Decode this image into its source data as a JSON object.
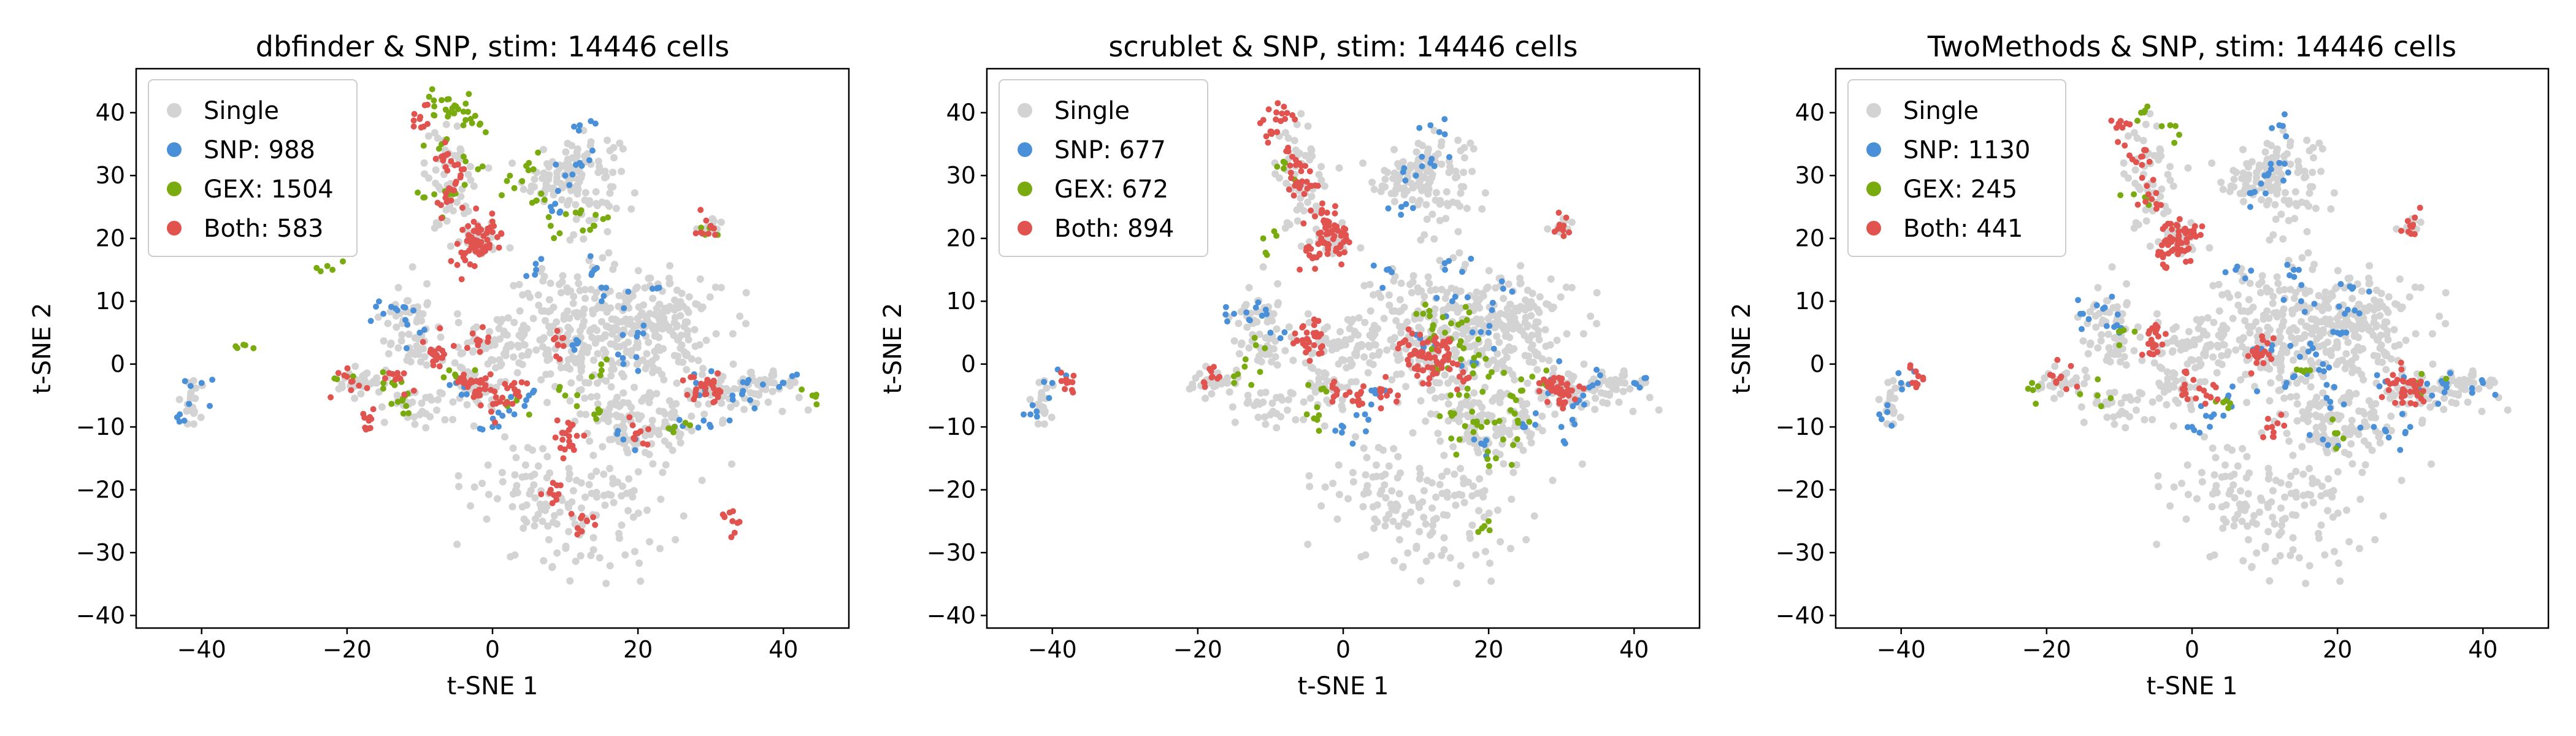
{
  "figure": {
    "description_colors": {
      "Single": "#d3d3d3",
      "SNP": "#4a90d9",
      "GEX": "#7aab0e",
      "Both": "#e0534f"
    }
  },
  "chart_data": [
    {
      "type": "scatter",
      "title": "dbfinder & SNP, stim: 14446 cells",
      "xlabel": "t-SNE 1",
      "ylabel": "t-SNE 2",
      "xlim": [
        -49,
        49
      ],
      "ylim": [
        -42,
        47
      ],
      "xticks": [
        -40,
        -20,
        0,
        20,
        40
      ],
      "yticks": [
        -40,
        -30,
        -20,
        -10,
        0,
        10,
        20,
        30,
        40
      ],
      "grid": false,
      "legend_position": "top-left",
      "legend": [
        {
          "label": "Single",
          "color": "#d3d3d3"
        },
        {
          "label": "SNP: 988",
          "color": "#4a90d9"
        },
        {
          "label": "GEX: 1504",
          "color": "#7aab0e"
        },
        {
          "label": "Both: 583",
          "color": "#e0534f"
        }
      ],
      "series": [
        {
          "category": "SNP",
          "color": "#4a90d9",
          "points": [
            [
              10,
              30
            ],
            [
              12,
              32
            ],
            [
              8,
              25
            ],
            [
              15,
              10
            ],
            [
              20,
              5
            ],
            [
              18,
              0
            ],
            [
              5,
              -5
            ],
            [
              -10,
              5
            ],
            [
              -15,
              8
            ],
            [
              25,
              -10
            ],
            [
              28,
              -3
            ],
            [
              35,
              -3
            ],
            [
              40,
              -3
            ],
            [
              -43,
              -8
            ],
            [
              -40,
              -3
            ],
            [
              22,
              12
            ],
            [
              14,
              15
            ],
            [
              -5,
              -3
            ],
            [
              0,
              -10
            ],
            [
              30,
              -10
            ],
            [
              33,
              -5
            ],
            [
              18,
              -12
            ],
            [
              11,
              3
            ],
            [
              12,
              38
            ],
            [
              6,
              15
            ],
            [
              3,
              -8
            ],
            [
              -12,
              9
            ]
          ]
        },
        {
          "category": "GEX",
          "color": "#7aab0e",
          "points": [
            [
              -7,
              42
            ],
            [
              -5,
              41
            ],
            [
              -3,
              39
            ],
            [
              -4,
              38
            ],
            [
              -6,
              40
            ],
            [
              -8,
              41
            ],
            [
              -7,
              35
            ],
            [
              -2,
              31
            ],
            [
              3,
              28
            ],
            [
              6,
              26
            ],
            [
              8,
              22
            ],
            [
              12,
              24
            ],
            [
              14,
              22
            ],
            [
              5,
              32
            ],
            [
              -8,
              27
            ],
            [
              -6,
              27
            ],
            [
              -12,
              -5
            ],
            [
              -13,
              -6
            ],
            [
              -20,
              -2
            ],
            [
              -5,
              -2
            ],
            [
              2,
              -6
            ],
            [
              10,
              -5
            ],
            [
              14,
              -8
            ],
            [
              25,
              -10
            ],
            [
              15,
              -1
            ],
            [
              -22,
              15
            ],
            [
              -34,
              3
            ],
            [
              30,
              22
            ],
            [
              -15,
              -3
            ],
            [
              44,
              -5
            ]
          ]
        },
        {
          "category": "Both",
          "color": "#e0534f",
          "points": [
            [
              -2,
              22
            ],
            [
              -3,
              20
            ],
            [
              -1,
              18
            ],
            [
              -2,
              19
            ],
            [
              0,
              21
            ],
            [
              -4,
              17
            ],
            [
              -10,
              39
            ],
            [
              -7,
              33
            ],
            [
              -5,
              29
            ],
            [
              -6,
              26
            ],
            [
              -8,
              2
            ],
            [
              -7,
              1
            ],
            [
              -2,
              3
            ],
            [
              -4,
              -3
            ],
            [
              -2,
              -5
            ],
            [
              -1,
              -4
            ],
            [
              1,
              -6
            ],
            [
              3,
              -3
            ],
            [
              9,
              3
            ],
            [
              10,
              -11
            ],
            [
              11,
              -13
            ],
            [
              28,
              -4
            ],
            [
              30,
              -3
            ],
            [
              31,
              -5
            ],
            [
              30,
              22
            ],
            [
              -13,
              -2
            ],
            [
              -20,
              -2
            ],
            [
              -17,
              -9
            ],
            [
              20,
              -11
            ],
            [
              8,
              -20
            ],
            [
              13,
              -25
            ],
            [
              33,
              -25
            ]
          ]
        }
      ]
    },
    {
      "type": "scatter",
      "title": "scrublet & SNP, stim: 14446 cells",
      "xlabel": "t-SNE 1",
      "ylabel": "t-SNE 2",
      "xlim": [
        -49,
        49
      ],
      "ylim": [
        -42,
        47
      ],
      "xticks": [
        -40,
        -20,
        0,
        20,
        40
      ],
      "yticks": [
        -40,
        -30,
        -20,
        -10,
        0,
        10,
        20,
        30,
        40
      ],
      "grid": false,
      "legend_position": "top-left",
      "legend": [
        {
          "label": "Single",
          "color": "#d3d3d3"
        },
        {
          "label": "SNP: 677",
          "color": "#4a90d9"
        },
        {
          "label": "GEX: 672",
          "color": "#7aab0e"
        },
        {
          "label": "Both: 894",
          "color": "#e0534f"
        }
      ],
      "series": [
        {
          "category": "SNP",
          "color": "#4a90d9",
          "points": [
            [
              10,
              30
            ],
            [
              12,
              32
            ],
            [
              8,
              25
            ],
            [
              15,
              10
            ],
            [
              20,
              5
            ],
            [
              18,
              0
            ],
            [
              5,
              -5
            ],
            [
              -10,
              5
            ],
            [
              -15,
              8
            ],
            [
              25,
              -10
            ],
            [
              28,
              -3
            ],
            [
              35,
              -3
            ],
            [
              40,
              -3
            ],
            [
              -43,
              -8
            ],
            [
              -40,
              -3
            ],
            [
              22,
              12
            ],
            [
              14,
              15
            ],
            [
              0,
              -10
            ],
            [
              30,
              -10
            ],
            [
              33,
              -5
            ],
            [
              18,
              -12
            ],
            [
              11,
              3
            ],
            [
              12,
              38
            ],
            [
              6,
              15
            ],
            [
              3,
              -8
            ],
            [
              -12,
              9
            ]
          ]
        },
        {
          "category": "GEX",
          "color": "#7aab0e",
          "points": [
            [
              14,
              5
            ],
            [
              16,
              3
            ],
            [
              18,
              1
            ],
            [
              20,
              -2
            ],
            [
              17,
              -5
            ],
            [
              15,
              -8
            ],
            [
              19,
              -10
            ],
            [
              22,
              -12
            ],
            [
              21,
              -15
            ],
            [
              13,
              -1
            ],
            [
              12,
              4
            ],
            [
              17,
              7
            ],
            [
              23,
              -5
            ],
            [
              11,
              8
            ],
            [
              16,
              -12
            ],
            [
              -12,
              3
            ],
            [
              -15,
              -3
            ],
            [
              -8,
              32
            ],
            [
              -11,
              20
            ],
            [
              20,
              -25
            ],
            [
              -5,
              -8
            ],
            [
              24,
              -9
            ],
            [
              26,
              -2
            ],
            [
              -3,
              -4
            ]
          ]
        },
        {
          "category": "Both",
          "color": "#e0534f",
          "points": [
            [
              -2,
              22
            ],
            [
              -3,
              20
            ],
            [
              -1,
              18
            ],
            [
              -4,
              17
            ],
            [
              -2,
              19
            ],
            [
              0,
              21
            ],
            [
              -3,
              24
            ],
            [
              -7,
              33
            ],
            [
              -10,
              37
            ],
            [
              -8,
              39
            ],
            [
              -6,
              28
            ],
            [
              -5,
              29
            ],
            [
              -5,
              5
            ],
            [
              -4,
              3
            ],
            [
              -5,
              4
            ],
            [
              9,
              3
            ],
            [
              10,
              2
            ],
            [
              12,
              1
            ],
            [
              11,
              -1
            ],
            [
              14,
              3
            ],
            [
              6,
              -5
            ],
            [
              2,
              -5
            ],
            [
              -1,
              -4
            ],
            [
              28,
              -3
            ],
            [
              30,
              -3
            ],
            [
              31,
              -5
            ],
            [
              29,
              -4
            ],
            [
              30,
              22
            ],
            [
              -18,
              -2
            ],
            [
              -38,
              -3
            ],
            [
              16,
              -2
            ],
            [
              13,
              0
            ]
          ]
        }
      ]
    },
    {
      "type": "scatter",
      "title": "TwoMethods & SNP, stim: 14446 cells",
      "xlabel": "t-SNE 1",
      "ylabel": "t-SNE 2",
      "xlim": [
        -49,
        49
      ],
      "ylim": [
        -42,
        47
      ],
      "xticks": [
        -40,
        -20,
        0,
        20,
        40
      ],
      "yticks": [
        -40,
        -30,
        -20,
        -10,
        0,
        10,
        20,
        30,
        40
      ],
      "grid": false,
      "legend_position": "top-left",
      "legend": [
        {
          "label": "Single",
          "color": "#d3d3d3"
        },
        {
          "label": "SNP: 1130",
          "color": "#4a90d9"
        },
        {
          "label": "GEX: 245",
          "color": "#7aab0e"
        },
        {
          "label": "Both: 441",
          "color": "#e0534f"
        }
      ],
      "series": [
        {
          "category": "SNP",
          "color": "#4a90d9",
          "points": [
            [
              10,
              30
            ],
            [
              12,
              32
            ],
            [
              8,
              25
            ],
            [
              15,
              10
            ],
            [
              20,
              5
            ],
            [
              18,
              0
            ],
            [
              5,
              -5
            ],
            [
              -10,
              5
            ],
            [
              -15,
              8
            ],
            [
              25,
              -10
            ],
            [
              28,
              -3
            ],
            [
              35,
              -3
            ],
            [
              40,
              -3
            ],
            [
              -43,
              -8
            ],
            [
              -40,
              -3
            ],
            [
              22,
              12
            ],
            [
              14,
              15
            ],
            [
              0,
              -10
            ],
            [
              30,
              -10
            ],
            [
              33,
              -5
            ],
            [
              18,
              -12
            ],
            [
              11,
              3
            ],
            [
              12,
              38
            ],
            [
              6,
              15
            ],
            [
              3,
              -8
            ],
            [
              -12,
              9
            ],
            [
              16,
              2
            ],
            [
              19,
              -6
            ],
            [
              13,
              -3
            ],
            [
              21,
              8
            ]
          ]
        },
        {
          "category": "GEX",
          "color": "#7aab0e",
          "points": [
            [
              -7,
              40
            ],
            [
              -3,
              38
            ],
            [
              -10,
              3
            ],
            [
              -13,
              -5
            ],
            [
              15,
              -1
            ],
            [
              -22,
              -3
            ],
            [
              31,
              -3
            ],
            [
              5,
              -7
            ],
            [
              20,
              -11
            ],
            [
              -8,
              27
            ]
          ]
        },
        {
          "category": "Both",
          "color": "#e0534f",
          "points": [
            [
              -2,
              22
            ],
            [
              -3,
              20
            ],
            [
              -1,
              18
            ],
            [
              -4,
              17
            ],
            [
              -2,
              19
            ],
            [
              0,
              21
            ],
            [
              -10,
              38
            ],
            [
              -7,
              33
            ],
            [
              -6,
              27
            ],
            [
              -5,
              3
            ],
            [
              -5,
              5
            ],
            [
              -1,
              -4
            ],
            [
              2,
              -5
            ],
            [
              10,
              2
            ],
            [
              9,
              1
            ],
            [
              28,
              -3
            ],
            [
              30,
              -3
            ],
            [
              31,
              -5
            ],
            [
              29,
              -4
            ],
            [
              30,
              22
            ],
            [
              -18,
              -2
            ],
            [
              -38,
              -3
            ],
            [
              11,
              -10
            ]
          ]
        }
      ]
    }
  ]
}
